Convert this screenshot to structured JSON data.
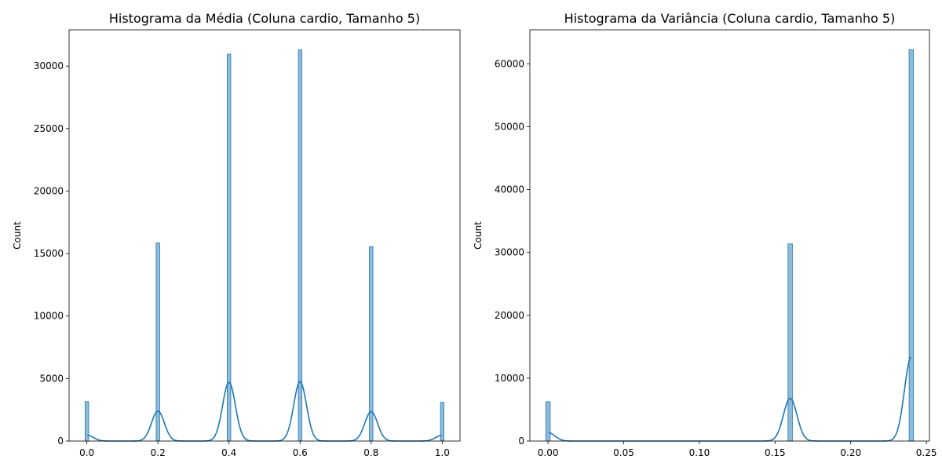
{
  "chart_data": [
    {
      "type": "histogram",
      "title": "Histograma da Média (Coluna cardio, Tamanho 5)",
      "xlabel": "",
      "ylabel": "Count",
      "xlim": [
        -0.05,
        1.05
      ],
      "ylim": [
        0,
        32900
      ],
      "xticks": [
        0.0,
        0.2,
        0.4,
        0.6,
        0.8,
        1.0
      ],
      "xtick_labels": [
        "0.0",
        "0.2",
        "0.4",
        "0.6",
        "0.8",
        "1.0"
      ],
      "yticks": [
        0,
        5000,
        10000,
        15000,
        20000,
        25000,
        30000
      ],
      "ytick_labels": [
        "0",
        "5000",
        "10000",
        "15000",
        "20000",
        "25000",
        "30000"
      ],
      "bin_width": 0.01,
      "bars": [
        {
          "x": 0.0,
          "count": 3150
        },
        {
          "x": 0.2,
          "count": 15850
        },
        {
          "x": 0.4,
          "count": 30950
        },
        {
          "x": 0.6,
          "count": 31300
        },
        {
          "x": 0.8,
          "count": 15550
        },
        {
          "x": 1.0,
          "count": 3100
        }
      ],
      "kde": {
        "peaks": [
          {
            "x": 0.0,
            "height": 480
          },
          {
            "x": 0.2,
            "height": 2400
          },
          {
            "x": 0.4,
            "height": 4700
          },
          {
            "x": 0.6,
            "height": 4750
          },
          {
            "x": 0.8,
            "height": 2350
          },
          {
            "x": 1.0,
            "height": 470
          }
        ],
        "sigma": 0.018
      },
      "grid": false,
      "color": "#1f77b4"
    },
    {
      "type": "histogram",
      "title": "Histograma da Variância (Coluna cardio, Tamanho 5)",
      "xlabel": "",
      "ylabel": "Count",
      "xlim": [
        -0.012,
        0.252
      ],
      "ylim": [
        0,
        65400
      ],
      "xticks": [
        0.0,
        0.05,
        0.1,
        0.15,
        0.2,
        0.25
      ],
      "xtick_labels": [
        "0.00",
        "0.05",
        "0.10",
        "0.15",
        "0.20",
        "0.25"
      ],
      "yticks": [
        0,
        10000,
        20000,
        30000,
        40000,
        50000,
        60000
      ],
      "ytick_labels": [
        "0",
        "10000",
        "20000",
        "30000",
        "40000",
        "50000",
        "60000"
      ],
      "bin_width": 0.0029,
      "bars": [
        {
          "x": 0.0,
          "count": 6250
        },
        {
          "x": 0.16,
          "count": 31350
        },
        {
          "x": 0.24,
          "count": 62250
        }
      ],
      "kde": {
        "peaks": [
          {
            "x": 0.0,
            "height": 1350
          },
          {
            "x": 0.16,
            "height": 6800
          },
          {
            "x": 0.24,
            "height": 13400
          }
        ],
        "sigma": 0.0045
      },
      "grid": false,
      "color": "#1f77b4"
    }
  ]
}
